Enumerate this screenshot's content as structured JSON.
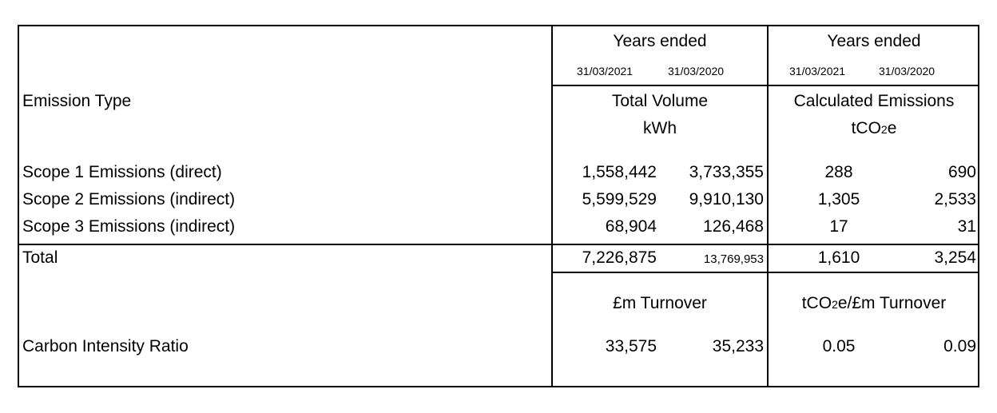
{
  "header": {
    "years_ended_left": "Years ended",
    "years_ended_right": "Years ended",
    "dates_left": [
      "31/03/2021",
      "31/03/2020"
    ],
    "dates_right": [
      "31/03/2021",
      "31/03/2020"
    ],
    "emission_type_label": "Emission Type",
    "total_volume": "Total Volume",
    "kwh": "kWh",
    "calculated_emissions": "Calculated Emissions",
    "tco2e_prefix": "tCO",
    "tco2e_sub": "2",
    "tco2e_suffix": "e"
  },
  "rows": [
    {
      "label": "Scope 1 Emissions (direct)",
      "vol_2021": "1,558,442",
      "vol_2020": "3,733,355",
      "em_2021": "288",
      "em_2020": "690"
    },
    {
      "label": "Scope 2 Emissions (indirect)",
      "vol_2021": "5,599,529",
      "vol_2020": "9,910,130",
      "em_2021": "1,305",
      "em_2020": "2,533"
    },
    {
      "label": "Scope 3 Emissions (indirect)",
      "vol_2021": "68,904",
      "vol_2020": "126,468",
      "em_2021": "17",
      "em_2020": "31"
    },
    {
      "label": "Total",
      "vol_2021": "7,226,875",
      "vol_2020": "13,769,953",
      "em_2021": "1,610",
      "em_2020": "3,254"
    }
  ],
  "intensity": {
    "turnover_label": "£m Turnover",
    "ratio_prefix": "tCO",
    "ratio_sub": "2",
    "ratio_suffix": "e/£m Turnover",
    "label": "Carbon Intensity Ratio",
    "turnover_2021": "33,575",
    "turnover_2020": "35,233",
    "ratio_2021": "0.05",
    "ratio_2020": "0.09"
  }
}
